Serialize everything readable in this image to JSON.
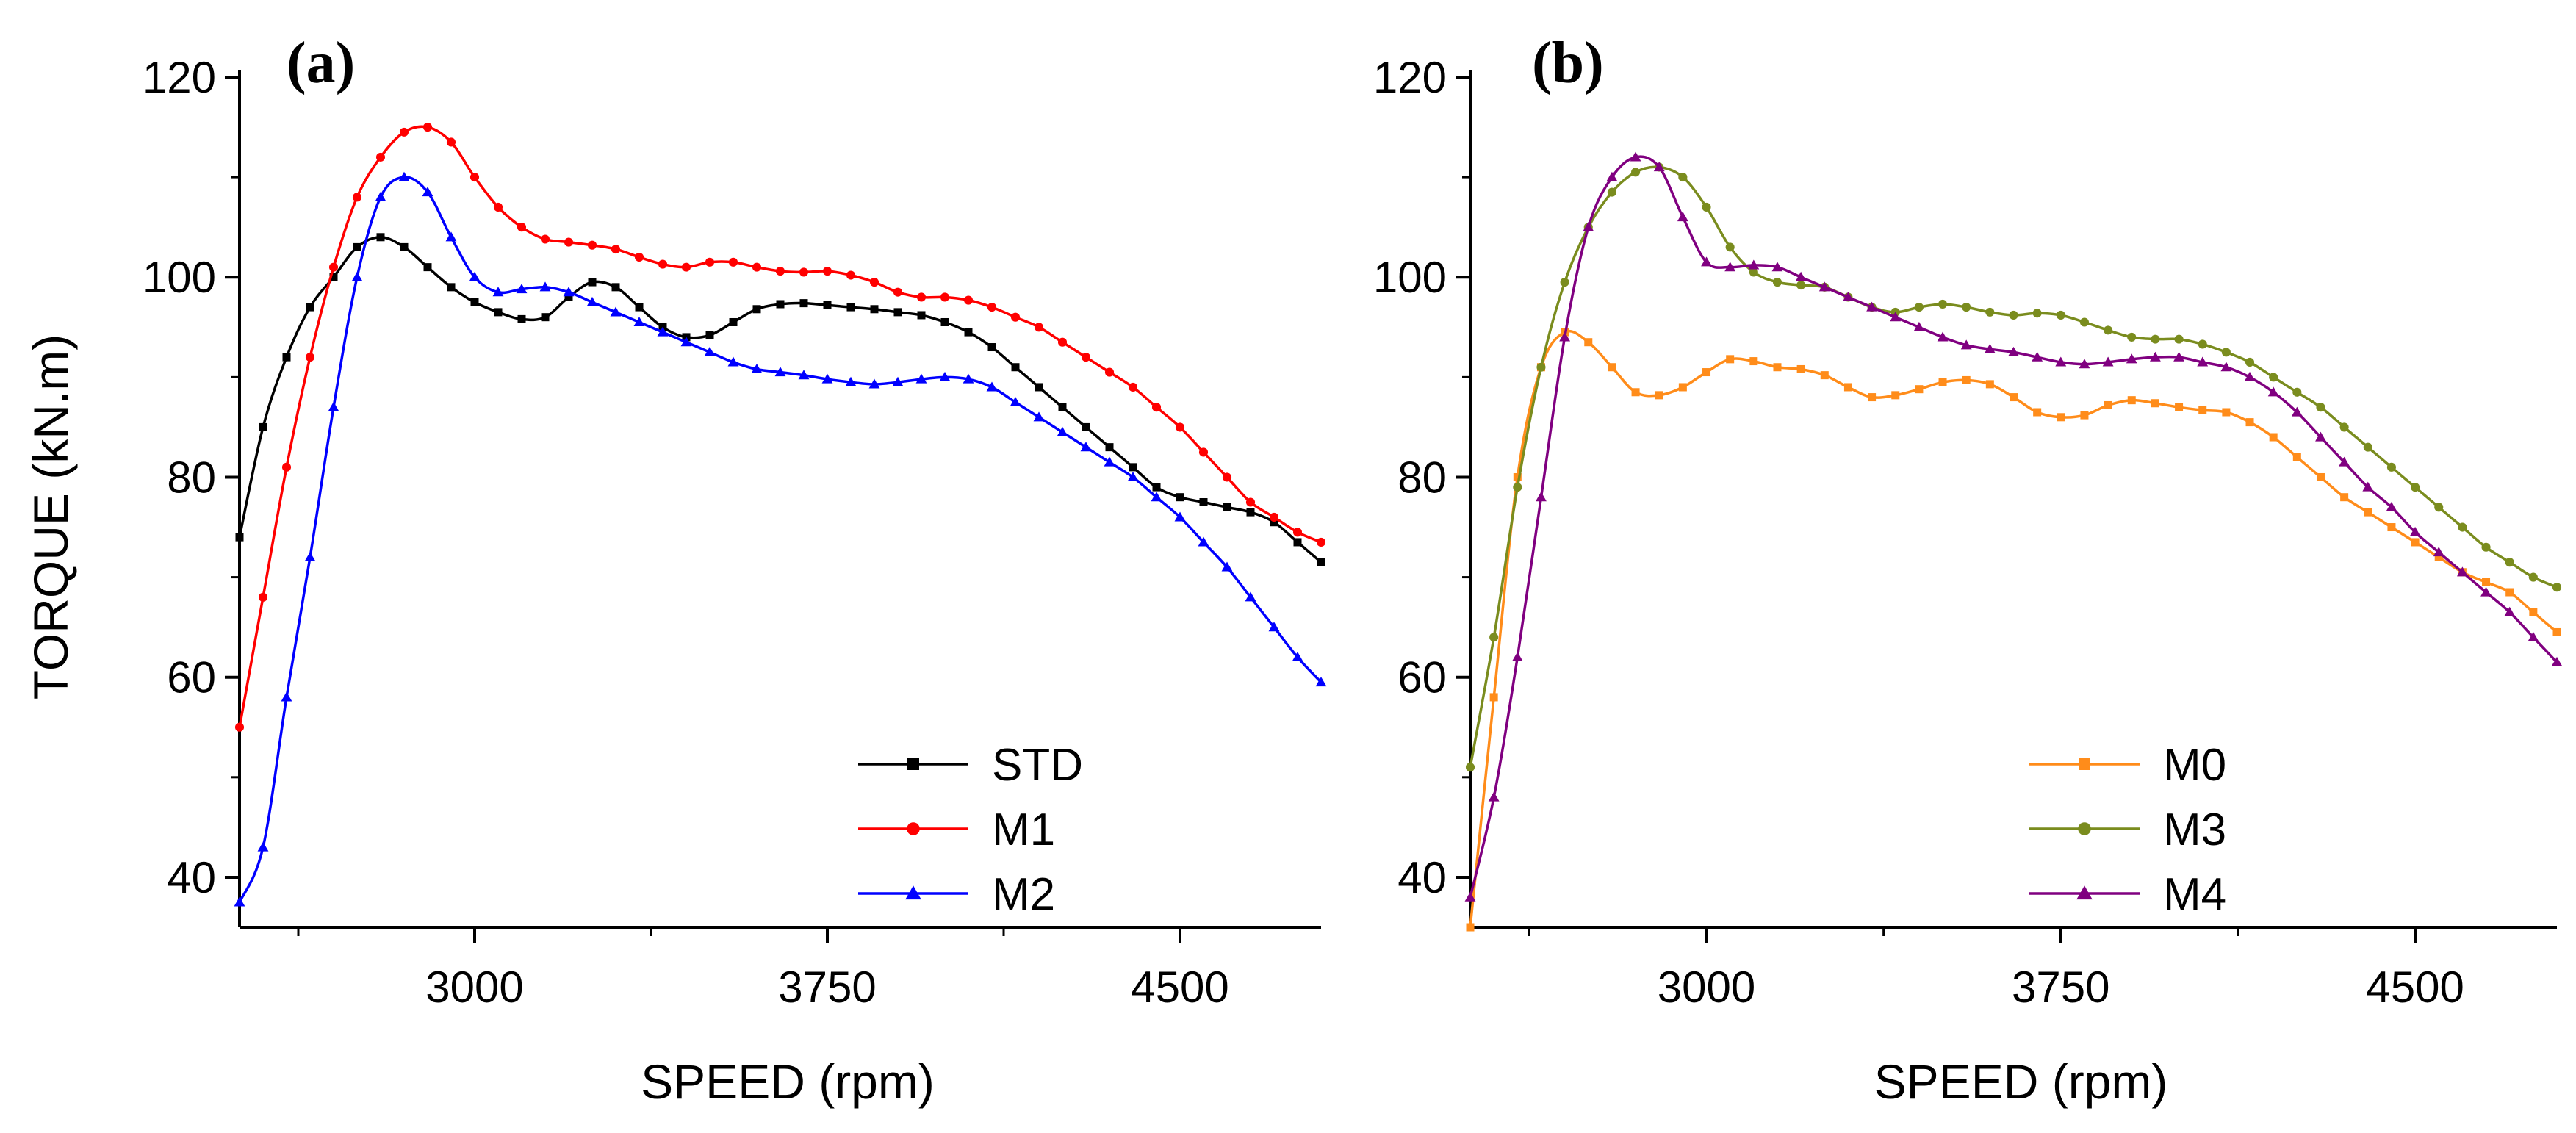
{
  "chart_data": [
    {
      "type": "line",
      "panel_label": "(a)",
      "xlabel": "SPEED (rpm)",
      "ylabel": "TORQUE (kN.m)",
      "xlim": [
        2500,
        4800
      ],
      "ylim": [
        35,
        120
      ],
      "xticks": [
        3000,
        3750,
        4500
      ],
      "xtick_labels": [
        "3000",
        "3750",
        "4500"
      ],
      "xminor": [
        2625,
        3375,
        4125
      ],
      "yticks": [
        40,
        60,
        80,
        100,
        120
      ],
      "ytick_labels": [
        "40",
        "60",
        "80",
        "100",
        "120"
      ],
      "legend_position": "lower-right",
      "series": [
        {
          "name": "STD",
          "color": "#000000",
          "marker": "square",
          "x": [
            2500,
            2550,
            2600,
            2650,
            2700,
            2750,
            2800,
            2850,
            2900,
            2950,
            3000,
            3050,
            3100,
            3150,
            3200,
            3250,
            3300,
            3350,
            3400,
            3450,
            3500,
            3550,
            3600,
            3650,
            3700,
            3750,
            3800,
            3850,
            3900,
            3950,
            4000,
            4050,
            4100,
            4150,
            4200,
            4250,
            4300,
            4350,
            4400,
            4450,
            4500,
            4550,
            4600,
            4650,
            4700,
            4750,
            4800
          ],
          "values": [
            74,
            85,
            92,
            97,
            100,
            103,
            104,
            103,
            101,
            99,
            97.5,
            96.5,
            95.8,
            96,
            98,
            99.5,
            99,
            97,
            95,
            94,
            94.2,
            95.5,
            96.8,
            97.3,
            97.4,
            97.2,
            97,
            96.8,
            96.5,
            96.2,
            95.5,
            94.5,
            93,
            91,
            89,
            87,
            85,
            83,
            81,
            79,
            78,
            77.5,
            77,
            76.5,
            75.5,
            73.5,
            71.5
          ]
        },
        {
          "name": "M1",
          "color": "#ff0000",
          "marker": "circle",
          "x": [
            2500,
            2550,
            2600,
            2650,
            2700,
            2750,
            2800,
            2850,
            2900,
            2950,
            3000,
            3050,
            3100,
            3150,
            3200,
            3250,
            3300,
            3350,
            3400,
            3450,
            3500,
            3550,
            3600,
            3650,
            3700,
            3750,
            3800,
            3850,
            3900,
            3950,
            4000,
            4050,
            4100,
            4150,
            4200,
            4250,
            4300,
            4350,
            4400,
            4450,
            4500,
            4550,
            4600,
            4650,
            4700,
            4750,
            4800
          ],
          "values": [
            55,
            68,
            81,
            92,
            101,
            108,
            112,
            114.5,
            115,
            113.5,
            110,
            107,
            105,
            103.8,
            103.5,
            103.2,
            102.8,
            102,
            101.3,
            101,
            101.5,
            101.5,
            101,
            100.6,
            100.5,
            100.6,
            100.2,
            99.5,
            98.5,
            98,
            98,
            97.7,
            97,
            96,
            95,
            93.5,
            92,
            90.5,
            89,
            87,
            85,
            82.5,
            80,
            77.5,
            76,
            74.5,
            73.5
          ]
        },
        {
          "name": "M2",
          "color": "#0000ff",
          "marker": "triangle",
          "x": [
            2500,
            2550,
            2600,
            2650,
            2700,
            2750,
            2800,
            2850,
            2900,
            2950,
            3000,
            3050,
            3100,
            3150,
            3200,
            3250,
            3300,
            3350,
            3400,
            3450,
            3500,
            3550,
            3600,
            3650,
            3700,
            3750,
            3800,
            3850,
            3900,
            3950,
            4000,
            4050,
            4100,
            4150,
            4200,
            4250,
            4300,
            4350,
            4400,
            4450,
            4500,
            4550,
            4600,
            4650,
            4700,
            4750,
            4800
          ],
          "values": [
            37.5,
            43,
            58,
            72,
            87,
            100,
            108,
            110,
            108.5,
            104,
            100,
            98.5,
            98.8,
            99,
            98.5,
            97.5,
            96.5,
            95.5,
            94.5,
            93.5,
            92.5,
            91.5,
            90.8,
            90.5,
            90.2,
            89.8,
            89.5,
            89.3,
            89.5,
            89.8,
            90,
            89.8,
            89,
            87.5,
            86,
            84.5,
            83,
            81.5,
            80,
            78,
            76,
            73.5,
            71,
            68,
            65,
            62,
            59.5
          ]
        }
      ]
    },
    {
      "type": "line",
      "panel_label": "(b)",
      "xlabel": "SPEED (rpm)",
      "ylabel": "",
      "xlim": [
        2500,
        4800
      ],
      "ylim": [
        35,
        120
      ],
      "xticks": [
        3000,
        3750,
        4500
      ],
      "xtick_labels": [
        "3000",
        "3750",
        "4500"
      ],
      "xminor": [
        2625,
        3375,
        4125
      ],
      "yticks": [
        40,
        60,
        80,
        100,
        120
      ],
      "ytick_labels": [
        "40",
        "60",
        "80",
        "100",
        "120"
      ],
      "legend_position": "lower-right",
      "series": [
        {
          "name": "M0",
          "color": "#ff8c1a",
          "marker": "square",
          "x": [
            2500,
            2550,
            2600,
            2650,
            2700,
            2750,
            2800,
            2850,
            2900,
            2950,
            3000,
            3050,
            3100,
            3150,
            3200,
            3250,
            3300,
            3350,
            3400,
            3450,
            3500,
            3550,
            3600,
            3650,
            3700,
            3750,
            3800,
            3850,
            3900,
            3950,
            4000,
            4050,
            4100,
            4150,
            4200,
            4250,
            4300,
            4350,
            4400,
            4450,
            4500,
            4550,
            4600,
            4650,
            4700,
            4750,
            4800
          ],
          "values": [
            35,
            58,
            80,
            91,
            94.5,
            93.5,
            91,
            88.5,
            88.2,
            89,
            90.5,
            91.8,
            91.6,
            91,
            90.8,
            90.2,
            89,
            88,
            88.2,
            88.8,
            89.5,
            89.7,
            89.3,
            88,
            86.5,
            86,
            86.2,
            87.2,
            87.7,
            87.4,
            87,
            86.7,
            86.5,
            85.5,
            84,
            82,
            80,
            78,
            76.5,
            75,
            73.5,
            72,
            70.5,
            69.5,
            68.5,
            66.5,
            64.5
          ]
        },
        {
          "name": "M3",
          "color": "#7a8c1e",
          "marker": "circle",
          "x": [
            2500,
            2550,
            2600,
            2650,
            2700,
            2750,
            2800,
            2850,
            2900,
            2950,
            3000,
            3050,
            3100,
            3150,
            3200,
            3250,
            3300,
            3350,
            3400,
            3450,
            3500,
            3550,
            3600,
            3650,
            3700,
            3750,
            3800,
            3850,
            3900,
            3950,
            4000,
            4050,
            4100,
            4150,
            4200,
            4250,
            4300,
            4350,
            4400,
            4450,
            4500,
            4550,
            4600,
            4650,
            4700,
            4750,
            4800
          ],
          "values": [
            51,
            64,
            79,
            91,
            99.5,
            105,
            108.5,
            110.5,
            111,
            110,
            107,
            103,
            100.5,
            99.5,
            99.2,
            99,
            98,
            97,
            96.5,
            97,
            97.3,
            97,
            96.5,
            96.2,
            96.4,
            96.2,
            95.5,
            94.7,
            94,
            93.8,
            93.8,
            93.3,
            92.5,
            91.5,
            90,
            88.5,
            87,
            85,
            83,
            81,
            79,
            77,
            75,
            73,
            71.5,
            70,
            69
          ]
        },
        {
          "name": "M4",
          "color": "#800080",
          "marker": "triangle",
          "x": [
            2500,
            2550,
            2600,
            2650,
            2700,
            2750,
            2800,
            2850,
            2900,
            2950,
            3000,
            3050,
            3100,
            3150,
            3200,
            3250,
            3300,
            3350,
            3400,
            3450,
            3500,
            3550,
            3600,
            3650,
            3700,
            3750,
            3800,
            3850,
            3900,
            3950,
            4000,
            4050,
            4100,
            4150,
            4200,
            4250,
            4300,
            4350,
            4400,
            4450,
            4500,
            4550,
            4600,
            4650,
            4700,
            4750,
            4800
          ],
          "values": [
            38,
            48,
            62,
            78,
            94,
            105,
            110,
            112,
            111,
            106,
            101.5,
            101,
            101.2,
            101,
            100,
            99,
            98,
            97,
            96,
            95,
            94,
            93.2,
            92.8,
            92.5,
            92,
            91.5,
            91.3,
            91.5,
            91.8,
            92,
            92,
            91.5,
            91,
            90,
            88.5,
            86.5,
            84,
            81.5,
            79,
            77,
            74.5,
            72.5,
            70.5,
            68.5,
            66.5,
            64,
            61.5
          ]
        }
      ]
    }
  ]
}
